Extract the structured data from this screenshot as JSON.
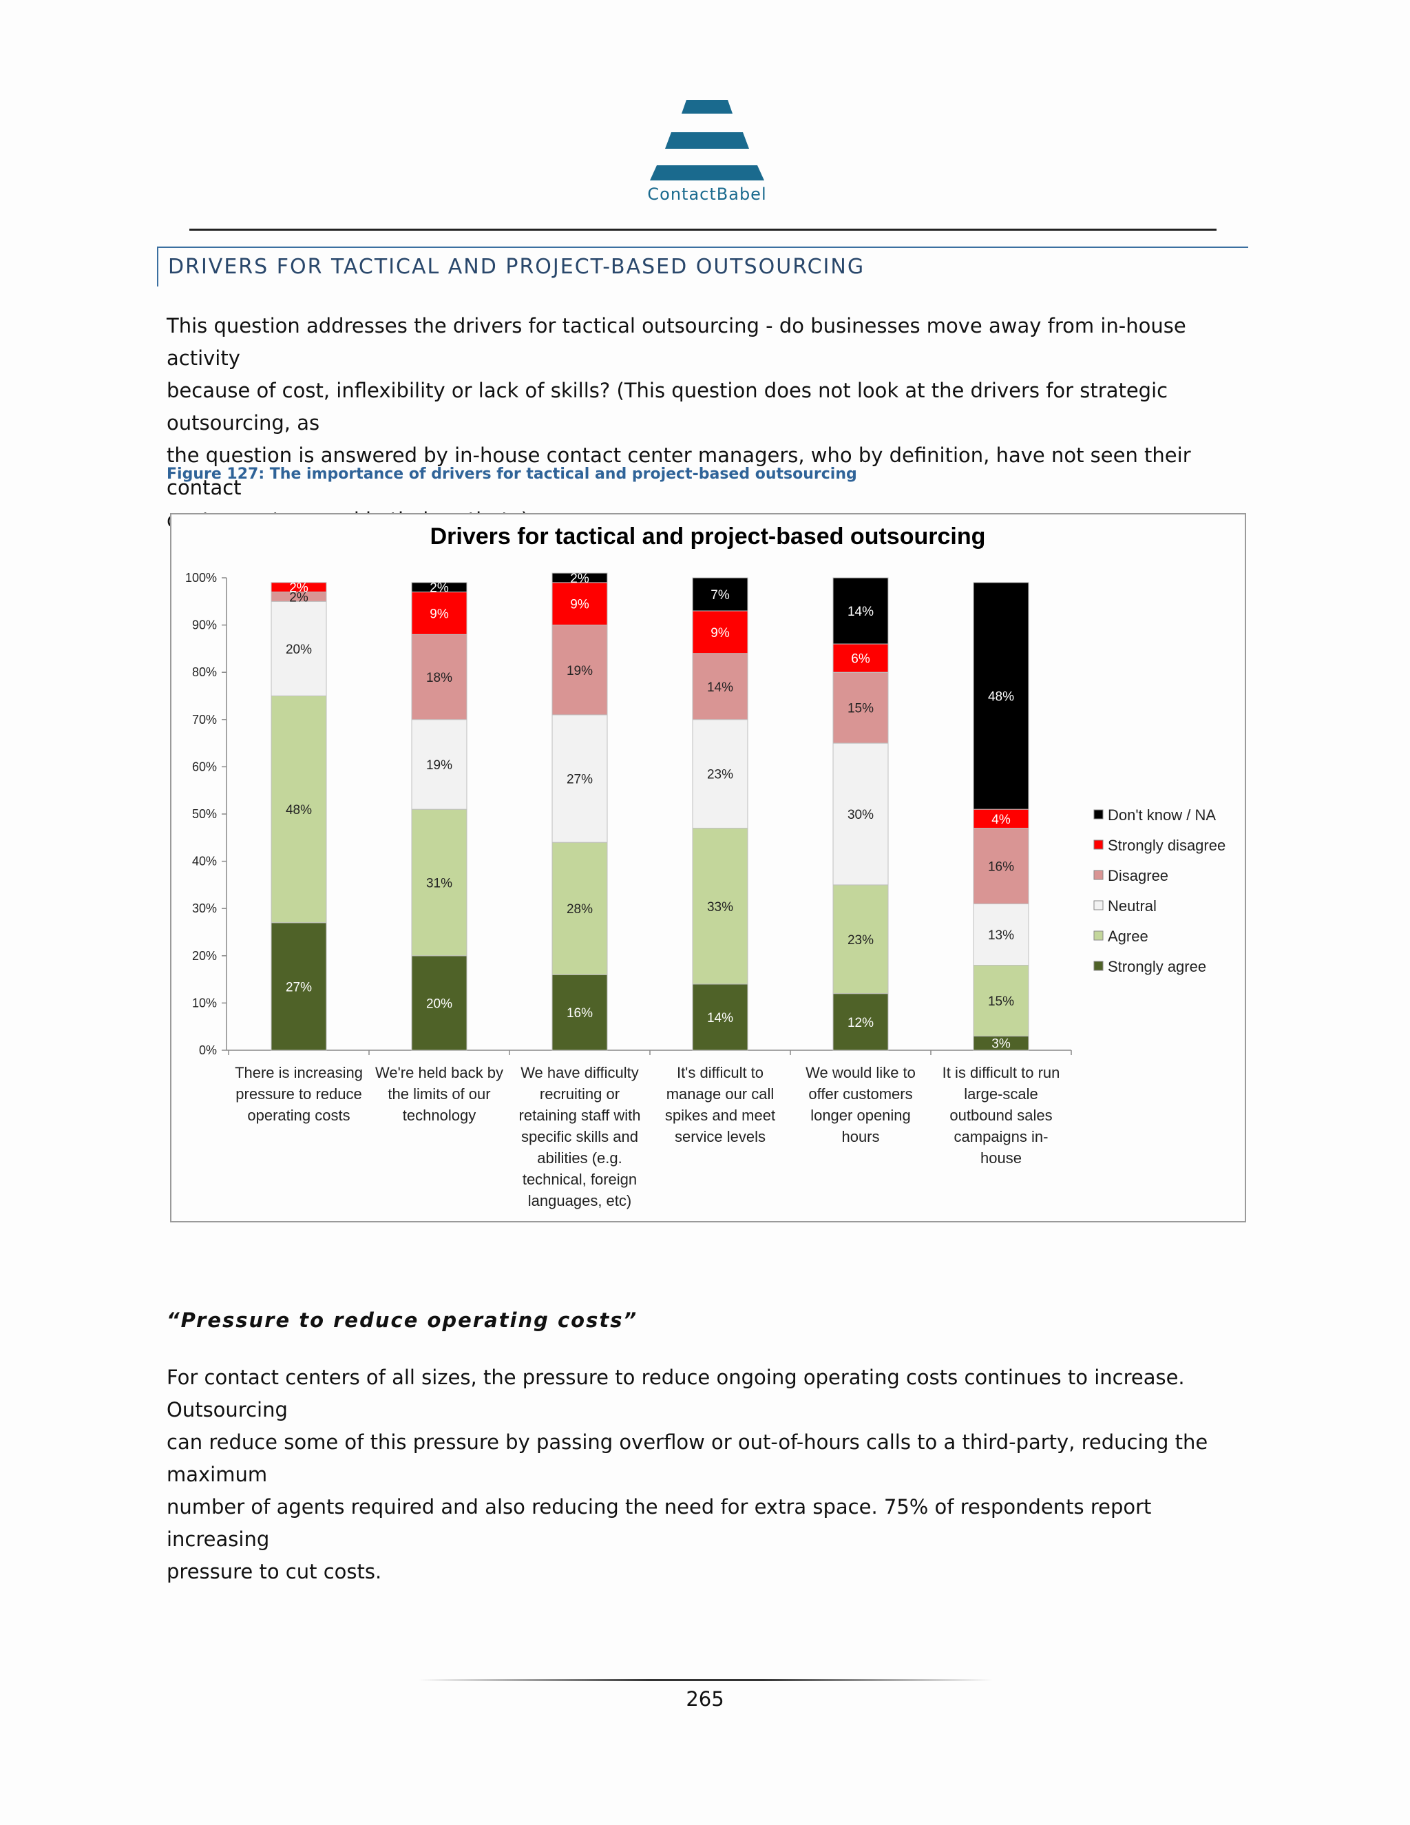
{
  "header": {
    "logo_text": "ContactBabel",
    "logo_color": "#1a6a8e"
  },
  "section": {
    "title": "DRIVERS FOR TACTICAL AND PROJECT-BASED OUTSOURCING"
  },
  "intro_lines": [
    "This question addresses the drivers for tactical outsourcing - do businesses move away from in-house activity",
    "because of cost, inflexibility or lack of skills? (This question does not look at the drivers for strategic outsourcing, as",
    "the question is answered by in-house contact center managers, who by definition, have not seen their contact",
    "centers outsourced in their entirety)."
  ],
  "figure_caption": "Figure 127: The importance of drivers for tactical and project-based outsourcing",
  "chart_data": {
    "type": "bar",
    "stacked": true,
    "title": "Drivers for tactical and project-based outsourcing",
    "ylim": [
      0,
      100
    ],
    "yticks": [
      "0%",
      "10%",
      "20%",
      "30%",
      "40%",
      "50%",
      "60%",
      "70%",
      "80%",
      "90%",
      "100%"
    ],
    "categories": [
      [
        "There is increasing",
        "pressure to reduce",
        "operating costs"
      ],
      [
        "We're held back by",
        "the limits of our",
        "technology"
      ],
      [
        "We have difficulty",
        "recruiting or",
        "retaining staff with",
        "specific skills and",
        "abilities (e.g.",
        "technical, foreign",
        "languages, etc)"
      ],
      [
        "It's difficult to",
        "manage our call",
        "spikes and meet",
        "service levels"
      ],
      [
        "We would  like to",
        "offer customers",
        "longer opening",
        "hours"
      ],
      [
        "It is difficult to run",
        "large-scale",
        "outbound  sales",
        "campaigns in-",
        "house"
      ]
    ],
    "series": [
      {
        "name": "Strongly agree",
        "color": "#4f6228",
        "values": [
          27,
          20,
          16,
          14,
          12,
          3
        ]
      },
      {
        "name": "Agree",
        "color": "#c3d69b",
        "values": [
          48,
          31,
          28,
          33,
          23,
          15
        ]
      },
      {
        "name": "Neutral",
        "color": "#f2f2f2",
        "values": [
          20,
          19,
          27,
          23,
          30,
          13
        ]
      },
      {
        "name": "Disagree",
        "color": "#d99594",
        "values": [
          2,
          18,
          19,
          14,
          15,
          16
        ]
      },
      {
        "name": "Strongly disagree",
        "color": "#ff0000",
        "values": [
          2,
          9,
          9,
          9,
          6,
          4
        ]
      },
      {
        "name": "Don't know / NA",
        "color": "#000000",
        "values": [
          0,
          2,
          2,
          7,
          14,
          48
        ]
      }
    ],
    "legend_position": "right",
    "grid": false
  },
  "subheading": "“Pressure to reduce operating costs”",
  "body_lines": [
    "For contact centers of all sizes, the pressure to reduce ongoing operating costs continues to increase. Outsourcing",
    "can reduce some of this pressure by passing overflow or out-of-hours calls to a third-party, reducing the maximum",
    "number of agents required and also reducing the need for extra space. 75% of respondents report increasing",
    "pressure to cut costs."
  ],
  "page_number": "265"
}
